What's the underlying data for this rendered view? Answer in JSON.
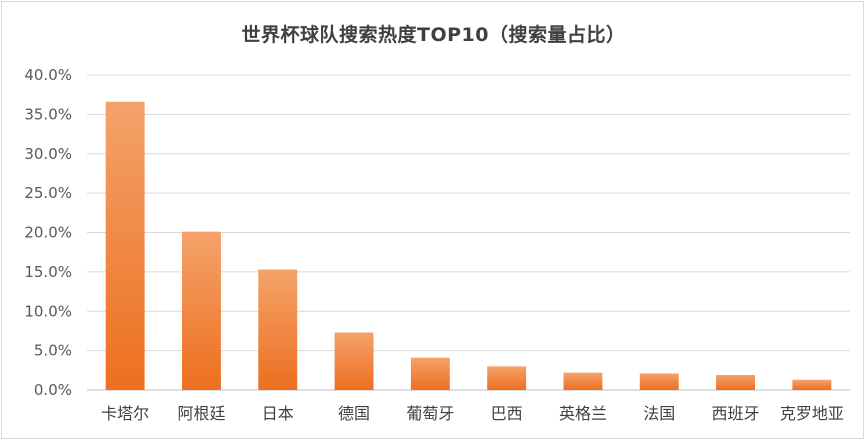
{
  "chart_data": {
    "type": "bar",
    "title": "世界杯球队搜索热度TOP10（搜索量占比）",
    "xlabel": "",
    "ylabel": "",
    "categories": [
      "卡塔尔",
      "阿根廷",
      "日本",
      "德国",
      "葡萄牙",
      "巴西",
      "英格兰",
      "法国",
      "西班牙",
      "克罗地亚"
    ],
    "values": [
      36.6,
      20.1,
      15.3,
      7.3,
      4.1,
      3.0,
      2.2,
      2.1,
      1.9,
      1.3
    ],
    "yticks": [
      "0.0%",
      "5.0%",
      "10.0%",
      "15.0%",
      "20.0%",
      "25.0%",
      "30.0%",
      "35.0%",
      "40.0%"
    ],
    "ylim": [
      0,
      40
    ],
    "grid": true,
    "legend": "none",
    "colors": {
      "bar_top": "#f4a26a",
      "bar_bottom": "#ed6f1f",
      "grid": "#d9d9d9",
      "axis": "#bfbfbf"
    }
  }
}
